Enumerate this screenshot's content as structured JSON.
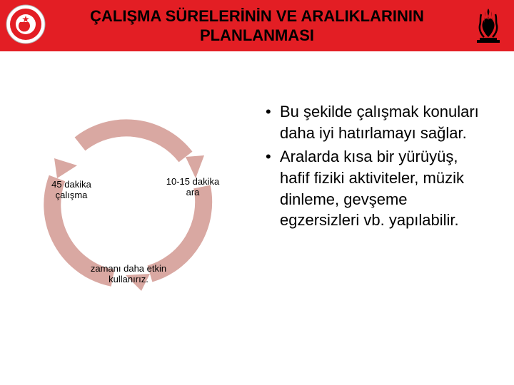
{
  "header": {
    "title": "ÇALIŞMA  SÜRELERİNİN  VE ARALIKLARININ PLANLANMASI",
    "title_color": "#000000",
    "title_fontsize": 22,
    "background_color": "#e31e24"
  },
  "logos": {
    "left_circle_outer": "#ffffff",
    "left_circle_inner": "#e31e24",
    "left_circle_border": "#b0b0b0",
    "right_flame": "#000000"
  },
  "cycle_diagram": {
    "type": "cycle",
    "arc_color": "#d9a8a2",
    "arc_width": 24,
    "arrow_head_color": "#d9a8a2",
    "background": "#ffffff",
    "nodes": [
      {
        "label": "45 dakika\nçalışma",
        "position": "left"
      },
      {
        "label": "10-15 dakika\nara",
        "position": "right"
      },
      {
        "label": "zamanı daha etkin\nkullanırız.",
        "position": "bottom"
      }
    ],
    "label_fontsize": 13,
    "label_color": "#000000"
  },
  "bullets": {
    "items": [
      "Bu şekilde çalışmak konuları daha iyi hatırlamayı sağlar.",
      "Aralarda kısa bir yürüyüş, hafif fiziki aktiviteler, müzik dinleme, gevşeme egzersizleri  vb. yapılabilir."
    ],
    "fontsize": 22,
    "color": "#000000"
  }
}
